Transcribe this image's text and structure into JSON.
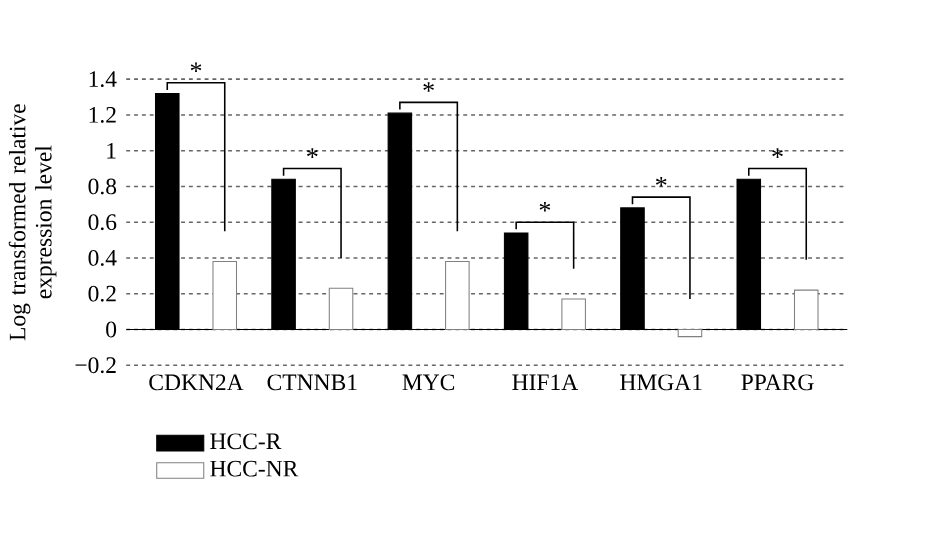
{
  "chart_data": {
    "type": "bar",
    "ylabel": "Log transformed relative expression level",
    "categories": [
      "CDKN2A",
      "CTNNB1",
      "MYC",
      "HIF1A",
      "HMGA1",
      "PPARG"
    ],
    "series": [
      {
        "name": "HCC-R",
        "color": "#000000",
        "values": [
          1.32,
          0.84,
          1.21,
          0.54,
          0.68,
          0.84
        ]
      },
      {
        "name": "HCC-NR",
        "color": "#ffffff",
        "values": [
          0.38,
          0.23,
          0.38,
          0.17,
          -0.04,
          0.22
        ]
      }
    ],
    "ylim": [
      -0.2,
      1.4
    ],
    "yticks": [
      {
        "value": -0.2,
        "label": "−0.2"
      },
      0,
      0.2,
      0.4,
      0.6,
      0.8,
      1,
      1.2,
      1.4
    ],
    "grid": "y",
    "legend": "bottom left",
    "annotations": [
      "*",
      "*",
      "*",
      "*",
      "*",
      "*"
    ]
  }
}
